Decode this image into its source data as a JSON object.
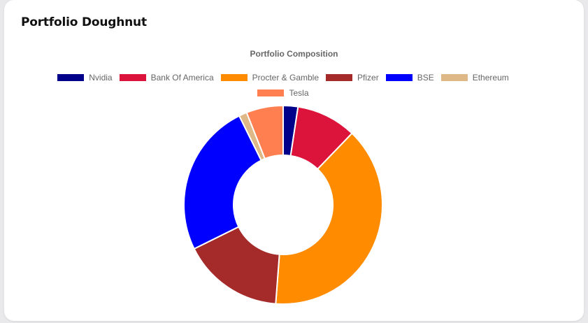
{
  "card": {
    "title": "Portfolio Doughnut"
  },
  "chart_data": {
    "type": "doughnut",
    "title": "Portfolio Composition",
    "legend_position": "top",
    "categories": [
      "Nvidia",
      "Bank Of America",
      "Procter & Gamble",
      "Pfizer",
      "BSE",
      "Ethereum",
      "Tesla"
    ],
    "values": [
      2.4,
      9.8,
      39.0,
      16.5,
      25.0,
      1.3,
      6.0
    ],
    "colors": [
      "#00008b",
      "#dc143c",
      "#ff8c00",
      "#a52a2a",
      "#0000ff",
      "#deb887",
      "#ff7f50"
    ]
  }
}
